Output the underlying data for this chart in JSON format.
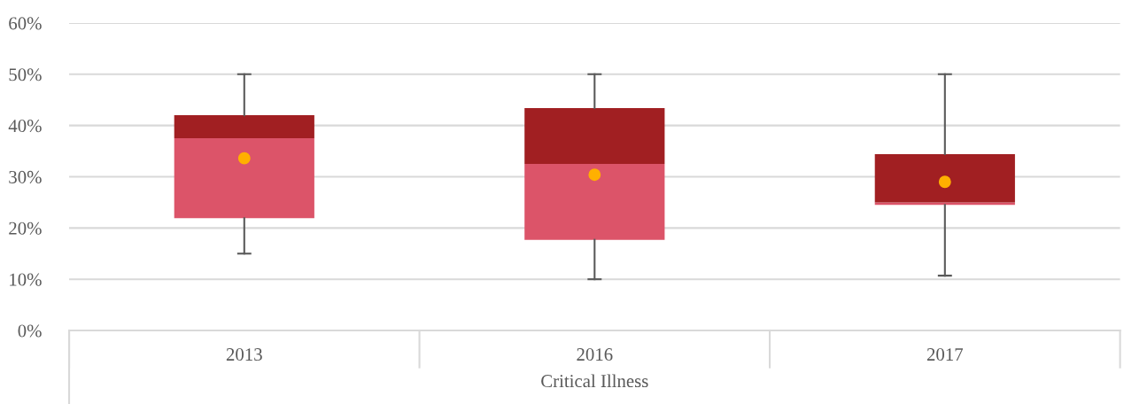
{
  "chart_data": {
    "type": "box",
    "xlabel": "Critical Illness",
    "categories": [
      "2013",
      "2016",
      "2017"
    ],
    "colors": [
      "#a11f22",
      "#a11f22",
      "#a11f22"
    ],
    "series": [
      {
        "color": "#dc5469",
        "boxes": [
          {
            "low": 15,
            "q1": 21.9,
            "median": 37.5,
            "q3": 42.0,
            "high": 50,
            "mean": 33.6
          },
          {
            "low": 10,
            "q1": 17.7,
            "median": 32.5,
            "q3": 43.4,
            "high": 50,
            "mean": 30.4
          },
          {
            "low": 10.7,
            "q1": 24.5,
            "median": 25.0,
            "q3": 34.4,
            "high": 50,
            "mean": 29.0
          }
        ]
      }
    ],
    "ylim": [
      0,
      60
    ],
    "yticks": [
      {
        "value": 0,
        "label": "0%"
      },
      {
        "value": 10,
        "label": "10%"
      },
      {
        "value": 20,
        "label": "20%"
      },
      {
        "value": 30,
        "label": "30%"
      },
      {
        "value": 40,
        "label": "40%"
      },
      {
        "value": 50,
        "label": "50%"
      },
      {
        "value": 60,
        "label": "60%"
      }
    ],
    "grid": "y",
    "marker": "circle"
  }
}
